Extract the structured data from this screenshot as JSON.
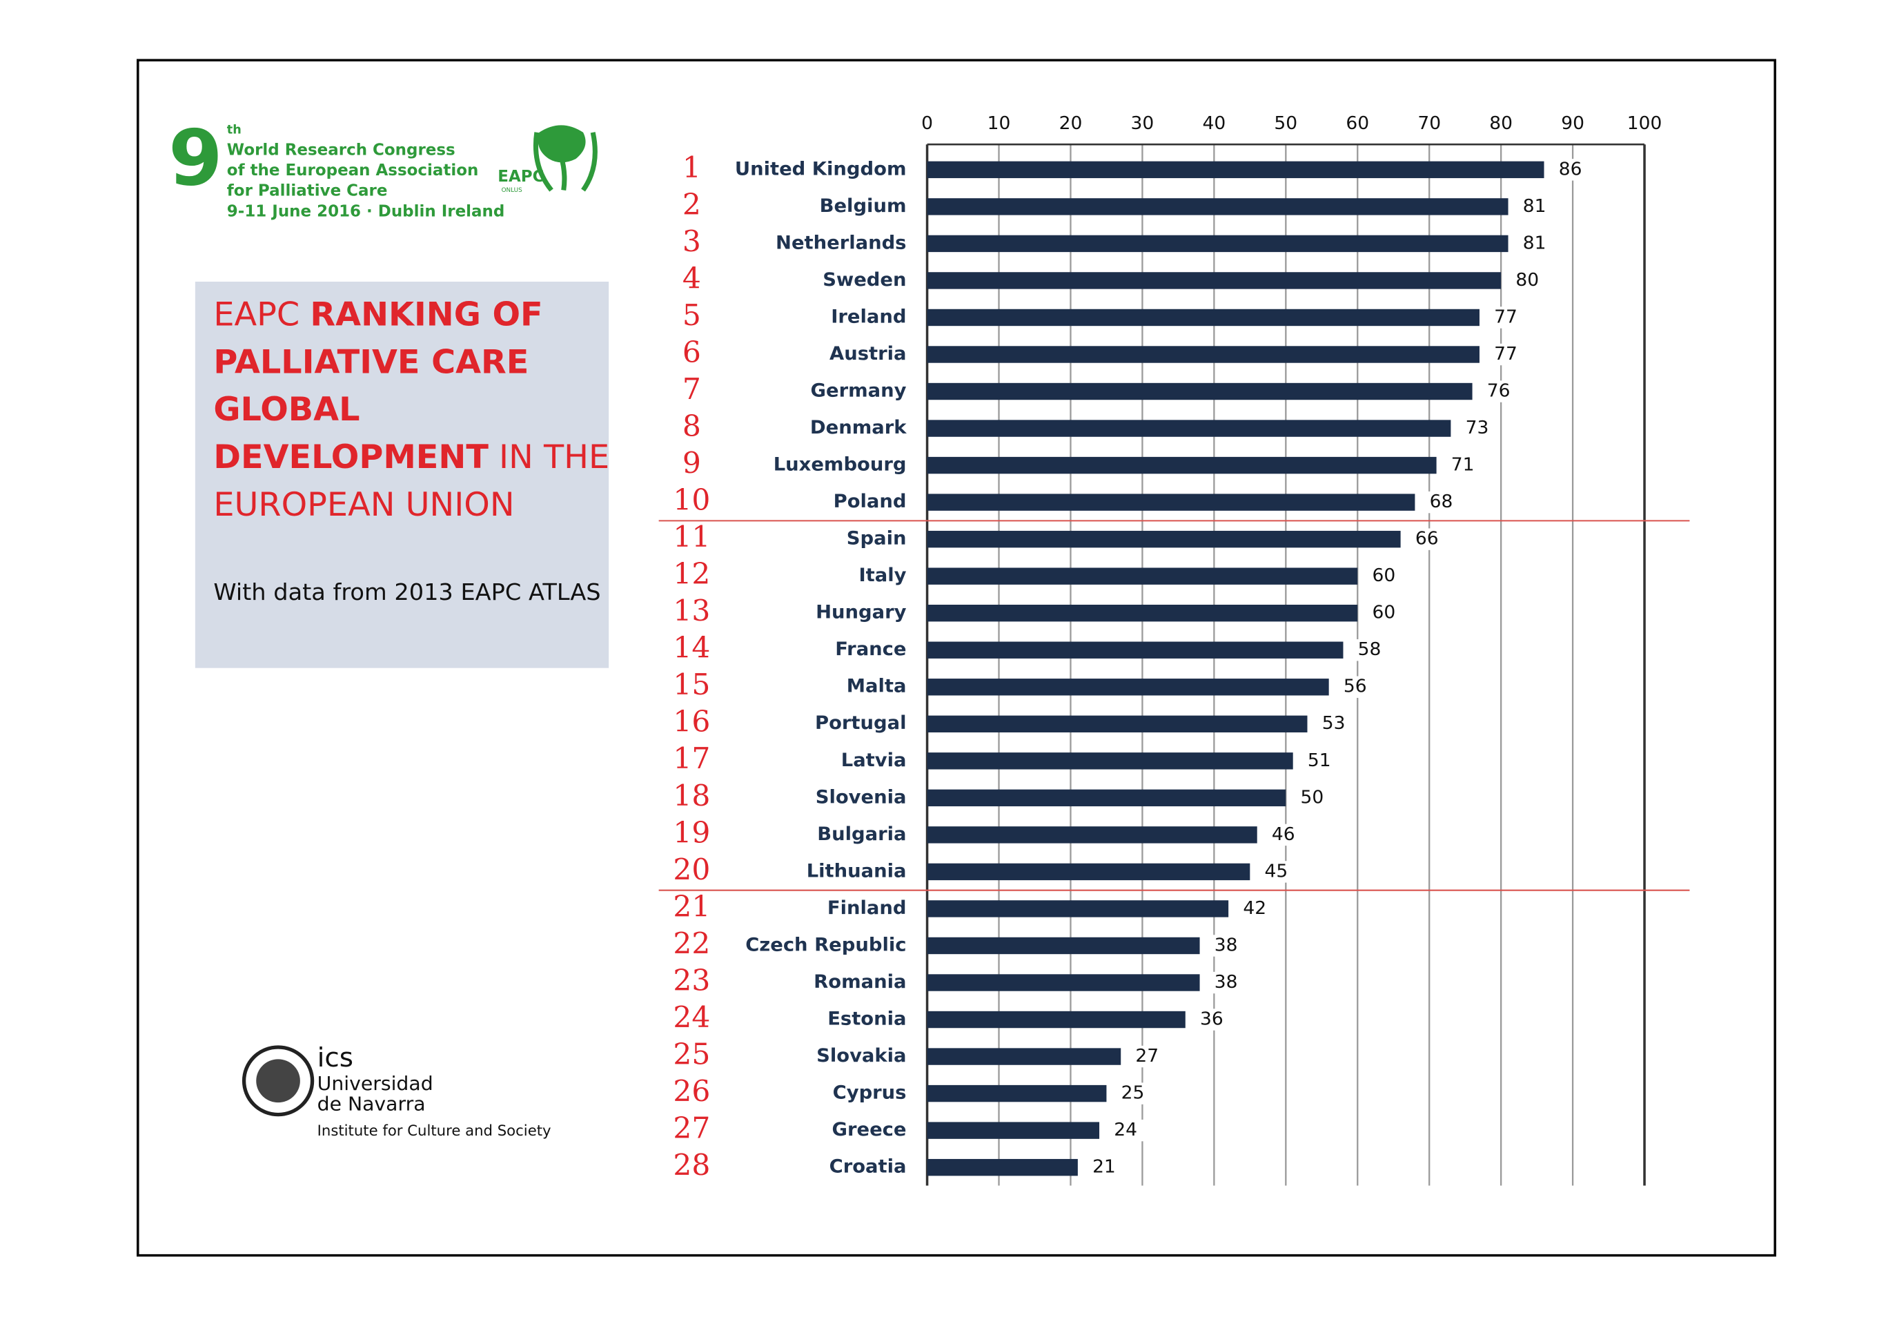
{
  "logo": {
    "number": "9",
    "ordinal": "th",
    "lines": [
      "World Research Congress",
      "of the European Association",
      "for Palliative Care",
      "9-11 June 2016 · Dublin Ireland"
    ],
    "eapc": "EAPC",
    "onlus": "ONLUS"
  },
  "title_lines": [
    [
      {
        "text": "EAPC ",
        "bold": false
      },
      {
        "text": "RANKING OF",
        "bold": true
      }
    ],
    [
      {
        "text": "PALLIATIVE CARE",
        "bold": true
      }
    ],
    [
      {
        "text": "GLOBAL",
        "bold": true
      }
    ],
    [
      {
        "text": "DEVELOPMENT",
        "bold": true
      },
      {
        "text": " IN THE",
        "bold": false
      }
    ],
    [
      {
        "text": "EUROPEAN UNION",
        "bold": false
      }
    ]
  ],
  "subtitle": "With data from 2013 EAPC ATLAS",
  "footer_logo": {
    "short": "ics",
    "lines": [
      "Universidad",
      "de Navarra"
    ],
    "institute": "Institute for Culture and Society"
  },
  "chart_data": {
    "type": "bar",
    "orientation": "horizontal",
    "ranks": [
      1,
      2,
      3,
      4,
      5,
      6,
      7,
      8,
      9,
      10,
      11,
      12,
      13,
      14,
      15,
      16,
      17,
      18,
      19,
      20,
      21,
      22,
      23,
      24,
      25,
      26,
      27,
      28
    ],
    "categories": [
      "United Kingdom",
      "Belgium",
      "Netherlands",
      "Sweden",
      "Ireland",
      "Austria",
      "Germany",
      "Denmark",
      "Luxembourg",
      "Poland",
      "Spain",
      "Italy",
      "Hungary",
      "France",
      "Malta",
      "Portugal",
      "Latvia",
      "Slovenia",
      "Bulgaria",
      "Lithuania",
      "Finland",
      "Czech Republic",
      "Romania",
      "Estonia",
      "Slovakia",
      "Cyprus",
      "Greece",
      "Croatia"
    ],
    "values": [
      86,
      81,
      81,
      80,
      77,
      77,
      76,
      73,
      71,
      68,
      66,
      60,
      60,
      58,
      56,
      53,
      51,
      50,
      46,
      45,
      42,
      38,
      38,
      36,
      27,
      25,
      24,
      21
    ],
    "color": "#1c2e4a",
    "xlim": [
      0,
      100
    ],
    "xticks": [
      0,
      10,
      20,
      30,
      40,
      50,
      60,
      70,
      80,
      90,
      100
    ],
    "grid": true,
    "separators": [
      10,
      20
    ],
    "separator_color": "#d9534f"
  }
}
